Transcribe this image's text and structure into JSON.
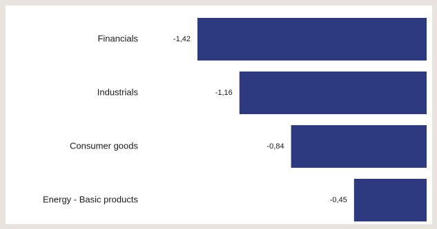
{
  "chart_data": {
    "type": "bar",
    "orientation": "horizontal",
    "categories": [
      "Financials",
      "Industrials",
      "Consumer goods",
      "Energy - Basic products"
    ],
    "values": [
      -1.42,
      -1.16,
      -0.84,
      -0.45
    ],
    "value_labels": [
      "-1,42",
      "-1,16",
      "-0,84",
      "-0,45"
    ],
    "title": "",
    "xlabel": "",
    "ylabel": "",
    "xlim": [
      -1.42,
      0
    ],
    "grid": false,
    "legend": "none",
    "bar_color": "#2e3a7f"
  }
}
